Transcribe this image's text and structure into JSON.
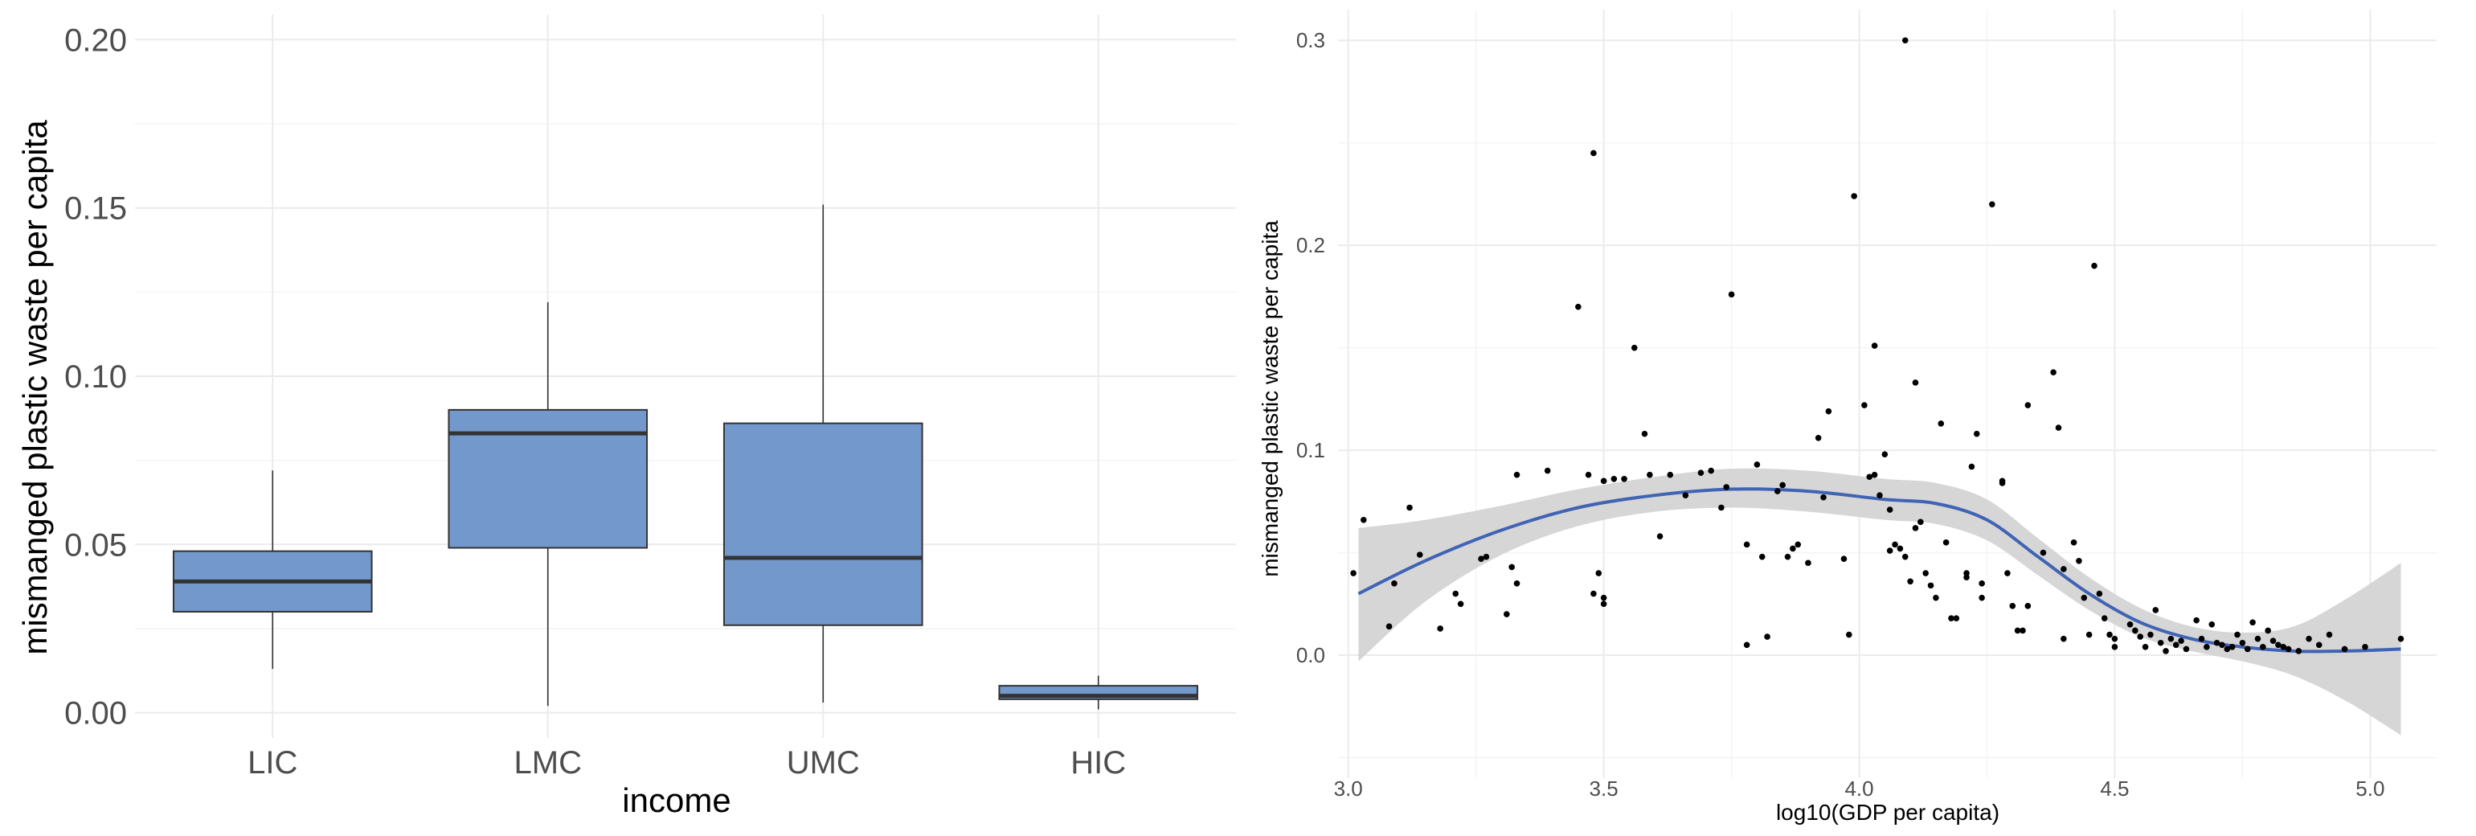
{
  "chart_data": [
    {
      "type": "box",
      "title": "",
      "xlabel": "income",
      "ylabel": "mismanged plastic waste per capita",
      "categories": [
        "LIC",
        "LMC",
        "UMC",
        "HIC"
      ],
      "ylim": [
        -0.0075,
        0.2075
      ],
      "yticks": [
        0.0,
        0.05,
        0.1,
        0.15,
        0.2
      ],
      "ytick_labels": [
        "0.00",
        "0.05",
        "0.10",
        "0.15",
        "0.20"
      ],
      "fill_color": "#7399cc",
      "line_color": "#333333",
      "boxes": [
        {
          "category": "LIC",
          "min": 0.013,
          "q1": 0.03,
          "median": 0.039,
          "q3": 0.048,
          "max": 0.072
        },
        {
          "category": "LMC",
          "min": 0.002,
          "q1": 0.049,
          "median": 0.083,
          "q3": 0.09,
          "max": 0.122
        },
        {
          "category": "UMC",
          "min": 0.003,
          "q1": 0.026,
          "median": 0.046,
          "q3": 0.086,
          "max": 0.151
        },
        {
          "category": "HIC",
          "min": 0.001,
          "q1": 0.004,
          "median": 0.005,
          "q3": 0.008,
          "max": 0.011
        }
      ]
    },
    {
      "type": "scatter",
      "title": "",
      "xlabel": "log10(GDP per capita)",
      "ylabel": "mismanged plastic waste per capita",
      "xlim": [
        2.98,
        5.13
      ],
      "ylim": [
        -0.06,
        0.315
      ],
      "xticks": [
        3.0,
        3.5,
        4.0,
        4.5,
        5.0
      ],
      "xtick_labels": [
        "3.0",
        "3.5",
        "4.0",
        "4.5",
        "5.0"
      ],
      "yticks": [
        0.0,
        0.1,
        0.2,
        0.3
      ],
      "ytick_labels": [
        "0.0",
        "0.1",
        "0.2",
        "0.3"
      ],
      "point_color": "#000000",
      "smooth_color": "#4063b4",
      "band_color": "#d4d4d4",
      "points": [
        [
          3.01,
          0.04
        ],
        [
          3.03,
          0.066
        ],
        [
          3.08,
          0.014
        ],
        [
          3.09,
          0.035
        ],
        [
          3.12,
          0.072
        ],
        [
          3.14,
          0.049
        ],
        [
          3.18,
          0.013
        ],
        [
          3.21,
          0.03
        ],
        [
          3.22,
          0.025
        ],
        [
          3.26,
          0.047
        ],
        [
          3.27,
          0.048
        ],
        [
          3.31,
          0.02
        ],
        [
          3.33,
          0.088
        ],
        [
          3.32,
          0.043
        ],
        [
          3.33,
          0.035
        ],
        [
          3.39,
          0.09
        ],
        [
          3.45,
          0.17
        ],
        [
          3.47,
          0.088
        ],
        [
          3.48,
          0.245
        ],
        [
          3.48,
          0.03
        ],
        [
          3.49,
          0.04
        ],
        [
          3.5,
          0.085
        ],
        [
          3.5,
          0.025
        ],
        [
          3.5,
          0.028
        ],
        [
          3.52,
          0.086
        ],
        [
          3.54,
          0.086
        ],
        [
          3.56,
          0.15
        ],
        [
          3.58,
          0.108
        ],
        [
          3.59,
          0.088
        ],
        [
          3.61,
          0.058
        ],
        [
          3.63,
          0.088
        ],
        [
          3.66,
          0.078
        ],
        [
          3.69,
          0.089
        ],
        [
          3.71,
          0.09
        ],
        [
          3.73,
          0.072
        ],
        [
          3.74,
          0.082
        ],
        [
          3.75,
          0.176
        ],
        [
          3.78,
          0.005
        ],
        [
          3.78,
          0.054
        ],
        [
          3.8,
          0.093
        ],
        [
          3.81,
          0.048
        ],
        [
          3.82,
          0.009
        ],
        [
          3.84,
          0.08
        ],
        [
          3.85,
          0.083
        ],
        [
          3.86,
          0.048
        ],
        [
          3.87,
          0.052
        ],
        [
          3.88,
          0.054
        ],
        [
          3.9,
          0.045
        ],
        [
          3.92,
          0.106
        ],
        [
          3.93,
          0.077
        ],
        [
          3.94,
          0.119
        ],
        [
          3.97,
          0.047
        ],
        [
          3.98,
          0.01
        ],
        [
          3.99,
          0.224
        ],
        [
          4.01,
          0.122
        ],
        [
          4.02,
          0.087
        ],
        [
          4.03,
          0.088
        ],
        [
          4.03,
          0.151
        ],
        [
          4.04,
          0.078
        ],
        [
          4.05,
          0.098
        ],
        [
          4.06,
          0.071
        ],
        [
          4.06,
          0.051
        ],
        [
          4.07,
          0.054
        ],
        [
          4.08,
          0.052
        ],
        [
          4.09,
          0.3
        ],
        [
          4.09,
          0.048
        ],
        [
          4.1,
          0.036
        ],
        [
          4.11,
          0.133
        ],
        [
          4.11,
          0.062
        ],
        [
          4.12,
          0.065
        ],
        [
          4.13,
          0.04
        ],
        [
          4.14,
          0.034
        ],
        [
          4.15,
          0.028
        ],
        [
          4.16,
          0.113
        ],
        [
          4.17,
          0.055
        ],
        [
          4.18,
          0.018
        ],
        [
          4.19,
          0.018
        ],
        [
          4.21,
          0.04
        ],
        [
          4.21,
          0.038
        ],
        [
          4.22,
          0.092
        ],
        [
          4.23,
          0.108
        ],
        [
          4.24,
          0.035
        ],
        [
          4.24,
          0.028
        ],
        [
          4.26,
          0.22
        ],
        [
          4.28,
          0.085
        ],
        [
          4.28,
          0.084
        ],
        [
          4.29,
          0.04
        ],
        [
          4.3,
          0.024
        ],
        [
          4.31,
          0.012
        ],
        [
          4.32,
          0.012
        ],
        [
          4.33,
          0.122
        ],
        [
          4.33,
          0.024
        ],
        [
          4.36,
          0.05
        ],
        [
          4.38,
          0.138
        ],
        [
          4.39,
          0.111
        ],
        [
          4.4,
          0.008
        ],
        [
          4.4,
          0.042
        ],
        [
          4.42,
          0.055
        ],
        [
          4.43,
          0.046
        ],
        [
          4.44,
          0.028
        ],
        [
          4.45,
          0.01
        ],
        [
          4.46,
          0.19
        ],
        [
          4.47,
          0.03
        ],
        [
          4.48,
          0.018
        ],
        [
          4.49,
          0.01
        ],
        [
          4.5,
          0.008
        ],
        [
          4.5,
          0.004
        ],
        [
          4.53,
          0.015
        ],
        [
          4.54,
          0.012
        ],
        [
          4.55,
          0.009
        ],
        [
          4.56,
          0.004
        ],
        [
          4.57,
          0.01
        ],
        [
          4.58,
          0.022
        ],
        [
          4.59,
          0.006
        ],
        [
          4.6,
          0.002
        ],
        [
          4.61,
          0.008
        ],
        [
          4.62,
          0.005
        ],
        [
          4.63,
          0.007
        ],
        [
          4.64,
          0.003
        ],
        [
          4.66,
          0.017
        ],
        [
          4.67,
          0.008
        ],
        [
          4.68,
          0.004
        ],
        [
          4.69,
          0.015
        ],
        [
          4.7,
          0.006
        ],
        [
          4.71,
          0.005
        ],
        [
          4.72,
          0.003
        ],
        [
          4.73,
          0.004
        ],
        [
          4.74,
          0.01
        ],
        [
          4.75,
          0.006
        ],
        [
          4.76,
          0.003
        ],
        [
          4.77,
          0.016
        ],
        [
          4.78,
          0.008
        ],
        [
          4.79,
          0.004
        ],
        [
          4.8,
          0.012
        ],
        [
          4.81,
          0.007
        ],
        [
          4.82,
          0.005
        ],
        [
          4.83,
          0.004
        ],
        [
          4.84,
          0.003
        ],
        [
          4.86,
          0.002
        ],
        [
          4.88,
          0.008
        ],
        [
          4.9,
          0.005
        ],
        [
          4.92,
          0.01
        ],
        [
          4.95,
          0.003
        ],
        [
          4.99,
          0.004
        ],
        [
          5.06,
          0.008
        ]
      ],
      "smooth": [
        {
          "x": 3.02,
          "y": 0.03,
          "lo": -0.003,
          "hi": 0.062
        },
        {
          "x": 3.15,
          "y": 0.046,
          "lo": 0.026,
          "hi": 0.066
        },
        {
          "x": 3.3,
          "y": 0.061,
          "lo": 0.049,
          "hi": 0.073
        },
        {
          "x": 3.45,
          "y": 0.072,
          "lo": 0.063,
          "hi": 0.081
        },
        {
          "x": 3.6,
          "y": 0.078,
          "lo": 0.07,
          "hi": 0.087
        },
        {
          "x": 3.75,
          "y": 0.081,
          "lo": 0.072,
          "hi": 0.091
        },
        {
          "x": 3.9,
          "y": 0.08,
          "lo": 0.07,
          "hi": 0.09
        },
        {
          "x": 4.05,
          "y": 0.076,
          "lo": 0.066,
          "hi": 0.086
        },
        {
          "x": 4.15,
          "y": 0.074,
          "lo": 0.064,
          "hi": 0.084
        },
        {
          "x": 4.25,
          "y": 0.066,
          "lo": 0.056,
          "hi": 0.076
        },
        {
          "x": 4.35,
          "y": 0.048,
          "lo": 0.039,
          "hi": 0.057
        },
        {
          "x": 4.45,
          "y": 0.03,
          "lo": 0.022,
          "hi": 0.038
        },
        {
          "x": 4.55,
          "y": 0.016,
          "lo": 0.009,
          "hi": 0.023
        },
        {
          "x": 4.65,
          "y": 0.008,
          "lo": 0.002,
          "hi": 0.014
        },
        {
          "x": 4.75,
          "y": 0.004,
          "lo": -0.003,
          "hi": 0.011
        },
        {
          "x": 4.85,
          "y": 0.002,
          "lo": -0.01,
          "hi": 0.014
        },
        {
          "x": 4.95,
          "y": 0.002,
          "lo": -0.022,
          "hi": 0.027
        },
        {
          "x": 5.06,
          "y": 0.003,
          "lo": -0.039,
          "hi": 0.045
        }
      ]
    }
  ]
}
